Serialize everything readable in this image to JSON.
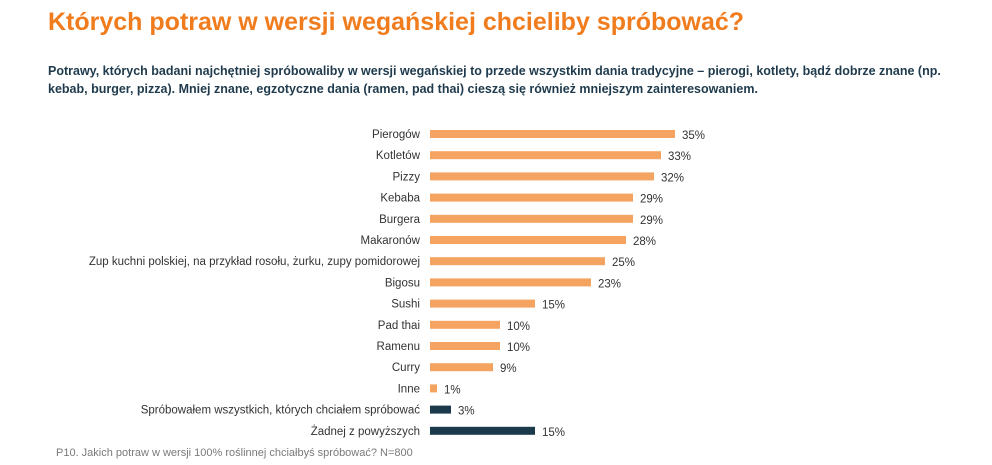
{
  "title": "Których potraw w wersji wegańskiej chcieliby spróbować?",
  "subtitle": "Potrawy, których badani najchętniej spróbowaliby w wersji wegańskiej to przede wszystkim dania tradycyjne – pierogi, kotlety, bądź dobrze znane (np. kebab, burger, pizza). Mniej znane, egzotyczne dania (ramen, pad thai) cieszą się również mniejszym zainteresowaniem.",
  "note": "P10. Jakich potraw w wersji 100% roślinnej chciałbyś spróbować? N=800",
  "colors": {
    "title": "#F07C1E",
    "subtitle": "#1E3A4C",
    "bar": "#F4A460",
    "bar_alt": "#1B3A4B"
  },
  "chart_data": {
    "type": "bar",
    "orientation": "horizontal",
    "categories": [
      "Pierogów",
      "Kotletów",
      "Pizzy",
      "Kebaba",
      "Burgera",
      "Makaronów",
      "Zup kuchni polskiej, na przykład rosołu, żurku, zupy pomidorowej",
      "Bigosu",
      "Sushi",
      "Pad thai",
      "Ramenu",
      "Curry",
      "Inne",
      "Spróbowałem wszystkich, których chciałem spróbować",
      "Żadnej z powyższych"
    ],
    "values": [
      35,
      33,
      32,
      29,
      29,
      28,
      25,
      23,
      15,
      10,
      10,
      9,
      1,
      3,
      15
    ],
    "value_labels": [
      "35%",
      "33%",
      "32%",
      "29%",
      "29%",
      "28%",
      "25%",
      "23%",
      "15%",
      "10%",
      "10%",
      "9%",
      "1%",
      "3%",
      "15%"
    ],
    "highlight_last": 2,
    "xlim": [
      0,
      100
    ],
    "grid": false,
    "legend": "none"
  }
}
